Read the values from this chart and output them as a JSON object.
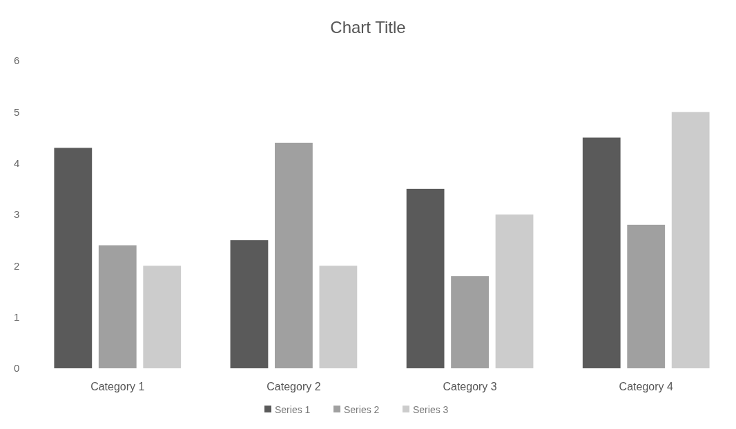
{
  "chart_data": {
    "type": "bar",
    "title": "Chart Title",
    "categories": [
      "Category 1",
      "Category 2",
      "Category 3",
      "Category 4"
    ],
    "series": [
      {
        "name": "Series 1",
        "color": "#5a5a5a",
        "values": [
          4.3,
          2.5,
          3.5,
          4.5
        ]
      },
      {
        "name": "Series 2",
        "color": "#a0a0a0",
        "values": [
          2.4,
          4.4,
          1.8,
          2.8
        ]
      },
      {
        "name": "Series 3",
        "color": "#cccccc",
        "values": [
          2,
          2,
          3,
          5
        ]
      }
    ],
    "ylim": [
      0,
      6
    ],
    "yticks": [
      0,
      1,
      2,
      3,
      4,
      5,
      6
    ],
    "grid": false,
    "legend": "bottom"
  }
}
